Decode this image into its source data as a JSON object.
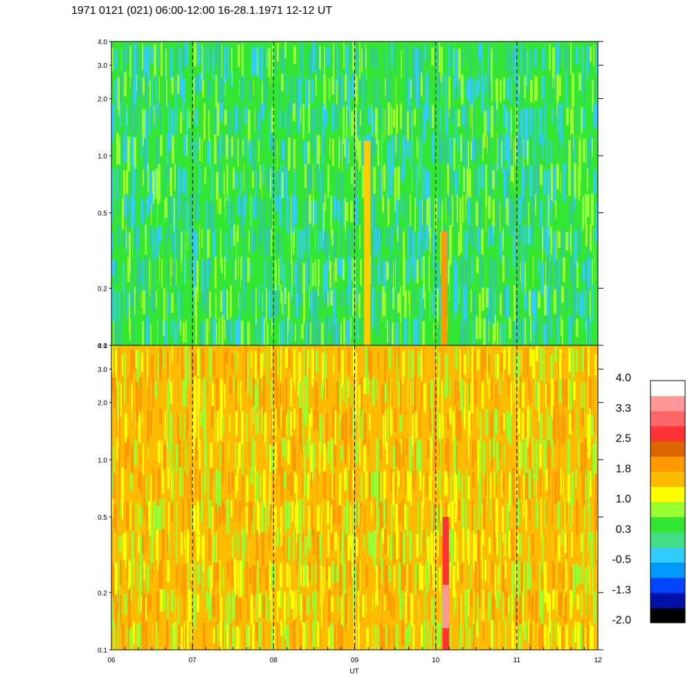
{
  "chart_data": {
    "type": "heatmap",
    "title": "1971 0121 (021) 06:00-12:00 16-28.1.1971  12-12 UT",
    "xlabel": "UT",
    "x_range": [
      6,
      12
    ],
    "x_ticks": [
      "06",
      "07",
      "08",
      "09",
      "10",
      "11",
      "12"
    ],
    "dashed_hour_lines": [
      7,
      8,
      9,
      10,
      11
    ],
    "y_scale": "log",
    "y_range": [
      0.1,
      4.0
    ],
    "y_ticks": [
      "0.1",
      "0.2",
      "0.5",
      "1.0",
      "2.0",
      "3.0",
      "4.0"
    ],
    "panels": [
      {
        "name": "upper",
        "dominant_colors": [
          "#33e633",
          "#33cc99",
          "#33ccff",
          "#99ff33"
        ],
        "features": [
          {
            "x": 10.1,
            "y_range": [
              0.1,
              0.4
            ],
            "color": "#ff9900"
          },
          {
            "x": 9.15,
            "y_range": [
              0.1,
              1.2
            ],
            "color": "#ffcc00"
          }
        ]
      },
      {
        "name": "lower",
        "dominant_colors": [
          "#ffbb00",
          "#ff9900",
          "#ffff00",
          "#99ff33"
        ],
        "features": [
          {
            "x": 10.12,
            "y_range": [
              0.1,
              0.5
            ],
            "color": "#ff3333"
          },
          {
            "x": 10.12,
            "y_range": [
              0.13,
              0.22
            ],
            "color": "#ff9999"
          }
        ]
      }
    ],
    "colorbar": {
      "range": [
        -2.0,
        4.0
      ],
      "tick_labels": [
        "4.0",
        "3.3",
        "2.5",
        "1.8",
        "1.0",
        "0.3",
        "-0.5",
        "-1.3",
        "-2.0"
      ],
      "colors_bottom_to_top": [
        "#000000",
        "#0011aa",
        "#0044ff",
        "#0099ff",
        "#33ccff",
        "#44dd88",
        "#33e633",
        "#99ff33",
        "#ffff00",
        "#ffbb00",
        "#ff9900",
        "#dd6600",
        "#ff3333",
        "#ff6666",
        "#ff9999",
        "#ffffff"
      ]
    }
  }
}
